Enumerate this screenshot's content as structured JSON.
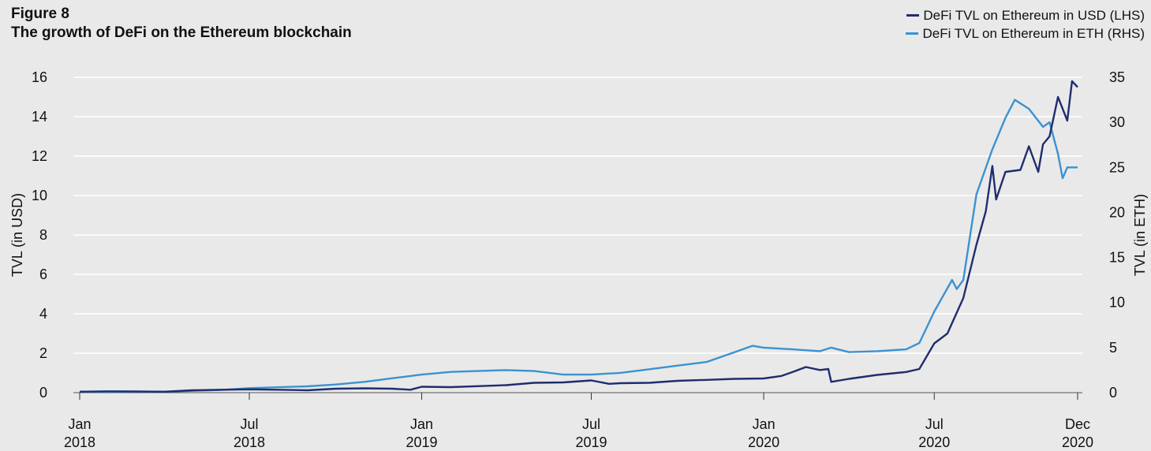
{
  "figure": {
    "label": "Figure 8",
    "title": "The growth of DeFi on the Ethereum blockchain"
  },
  "colors": {
    "background": "#e9e9e9",
    "gridline": "#ffffff",
    "usd_series": "#1f2d6e",
    "eth_series": "#3b92d0"
  },
  "chart_data": {
    "type": "line",
    "grid": true,
    "legend_position": "top-right",
    "x_axis": {
      "type": "date",
      "range": [
        "2018-01-01",
        "2020-12-01"
      ],
      "ticks": [
        {
          "date": "2018-01-01",
          "line1": "Jan",
          "line2": "2018"
        },
        {
          "date": "2018-07-01",
          "line1": "Jul",
          "line2": "2018"
        },
        {
          "date": "2019-01-01",
          "line1": "Jan",
          "line2": "2019"
        },
        {
          "date": "2019-07-01",
          "line1": "Jul",
          "line2": "2019"
        },
        {
          "date": "2020-01-01",
          "line1": "Jan",
          "line2": "2020"
        },
        {
          "date": "2020-07-01",
          "line1": "Jul",
          "line2": "2020"
        },
        {
          "date": "2020-12-01",
          "line1": "Dec",
          "line2": "2020"
        }
      ]
    },
    "y_left": {
      "label": "TVL (in USD)",
      "range": [
        0,
        16
      ],
      "ticks": [
        0,
        2,
        4,
        6,
        8,
        10,
        12,
        14,
        16
      ]
    },
    "y_right": {
      "label": "TVL (in ETH)",
      "range": [
        0,
        35
      ],
      "ticks": [
        0,
        5,
        10,
        15,
        20,
        25,
        30,
        35
      ]
    },
    "series": [
      {
        "name": "DeFi TVL on Ethereum in USD (LHS)",
        "axis": "left",
        "points": [
          [
            "2018-01-01",
            0.05
          ],
          [
            "2018-02-01",
            0.07
          ],
          [
            "2018-03-01",
            0.06
          ],
          [
            "2018-04-01",
            0.05
          ],
          [
            "2018-05-01",
            0.12
          ],
          [
            "2018-06-01",
            0.15
          ],
          [
            "2018-07-01",
            0.17
          ],
          [
            "2018-08-01",
            0.15
          ],
          [
            "2018-09-01",
            0.12
          ],
          [
            "2018-10-01",
            0.2
          ],
          [
            "2018-11-01",
            0.22
          ],
          [
            "2018-12-01",
            0.2
          ],
          [
            "2018-12-20",
            0.15
          ],
          [
            "2019-01-01",
            0.3
          ],
          [
            "2019-02-01",
            0.28
          ],
          [
            "2019-03-01",
            0.33
          ],
          [
            "2019-04-01",
            0.38
          ],
          [
            "2019-05-01",
            0.5
          ],
          [
            "2019-06-01",
            0.52
          ],
          [
            "2019-07-01",
            0.62
          ],
          [
            "2019-07-20",
            0.45
          ],
          [
            "2019-08-01",
            0.48
          ],
          [
            "2019-09-01",
            0.5
          ],
          [
            "2019-10-01",
            0.6
          ],
          [
            "2019-11-01",
            0.65
          ],
          [
            "2019-12-01",
            0.7
          ],
          [
            "2020-01-01",
            0.72
          ],
          [
            "2020-01-20",
            0.85
          ],
          [
            "2020-02-01",
            1.05
          ],
          [
            "2020-02-15",
            1.3
          ],
          [
            "2020-03-01",
            1.15
          ],
          [
            "2020-03-10",
            1.2
          ],
          [
            "2020-03-13",
            0.55
          ],
          [
            "2020-04-01",
            0.7
          ],
          [
            "2020-05-01",
            0.9
          ],
          [
            "2020-06-01",
            1.05
          ],
          [
            "2020-06-15",
            1.2
          ],
          [
            "2020-07-01",
            2.5
          ],
          [
            "2020-07-15",
            3.0
          ],
          [
            "2020-08-01",
            4.8
          ],
          [
            "2020-08-15",
            7.5
          ],
          [
            "2020-08-25",
            9.2
          ],
          [
            "2020-09-01",
            11.5
          ],
          [
            "2020-09-05",
            9.8
          ],
          [
            "2020-09-15",
            11.2
          ],
          [
            "2020-10-01",
            11.3
          ],
          [
            "2020-10-10",
            12.5
          ],
          [
            "2020-10-20",
            11.2
          ],
          [
            "2020-10-25",
            12.6
          ],
          [
            "2020-11-01",
            13.0
          ],
          [
            "2020-11-10",
            15.0
          ],
          [
            "2020-11-20",
            13.8
          ],
          [
            "2020-11-25",
            15.8
          ],
          [
            "2020-12-01",
            15.5
          ]
        ]
      },
      {
        "name": "DeFi TVL on Ethereum in ETH (RHS)",
        "axis": "right",
        "points": [
          [
            "2018-01-01",
            0.1
          ],
          [
            "2018-02-01",
            0.1
          ],
          [
            "2018-03-01",
            0.1
          ],
          [
            "2018-04-01",
            0.1
          ],
          [
            "2018-05-01",
            0.2
          ],
          [
            "2018-06-01",
            0.3
          ],
          [
            "2018-07-01",
            0.5
          ],
          [
            "2018-08-01",
            0.6
          ],
          [
            "2018-09-01",
            0.7
          ],
          [
            "2018-10-01",
            0.9
          ],
          [
            "2018-11-01",
            1.2
          ],
          [
            "2018-12-01",
            1.6
          ],
          [
            "2019-01-01",
            2.0
          ],
          [
            "2019-02-01",
            2.3
          ],
          [
            "2019-03-01",
            2.4
          ],
          [
            "2019-04-01",
            2.5
          ],
          [
            "2019-05-01",
            2.4
          ],
          [
            "2019-06-01",
            2.0
          ],
          [
            "2019-07-01",
            2.0
          ],
          [
            "2019-08-01",
            2.2
          ],
          [
            "2019-09-01",
            2.6
          ],
          [
            "2019-10-01",
            3.0
          ],
          [
            "2019-11-01",
            3.4
          ],
          [
            "2019-12-01",
            4.5
          ],
          [
            "2019-12-20",
            5.2
          ],
          [
            "2020-01-01",
            5.0
          ],
          [
            "2020-02-01",
            4.8
          ],
          [
            "2020-03-01",
            4.6
          ],
          [
            "2020-03-13",
            5.0
          ],
          [
            "2020-04-01",
            4.5
          ],
          [
            "2020-05-01",
            4.6
          ],
          [
            "2020-06-01",
            4.8
          ],
          [
            "2020-06-15",
            5.5
          ],
          [
            "2020-07-01",
            9.0
          ],
          [
            "2020-07-20",
            12.5
          ],
          [
            "2020-07-25",
            11.5
          ],
          [
            "2020-08-01",
            12.5
          ],
          [
            "2020-08-15",
            22.0
          ],
          [
            "2020-09-01",
            27.0
          ],
          [
            "2020-09-15",
            30.5
          ],
          [
            "2020-09-25",
            32.5
          ],
          [
            "2020-10-10",
            31.5
          ],
          [
            "2020-10-25",
            29.5
          ],
          [
            "2020-11-01",
            30.0
          ],
          [
            "2020-11-10",
            26.5
          ],
          [
            "2020-11-15",
            23.8
          ],
          [
            "2020-11-20",
            25.0
          ],
          [
            "2020-12-01",
            25.0
          ]
        ]
      }
    ]
  }
}
